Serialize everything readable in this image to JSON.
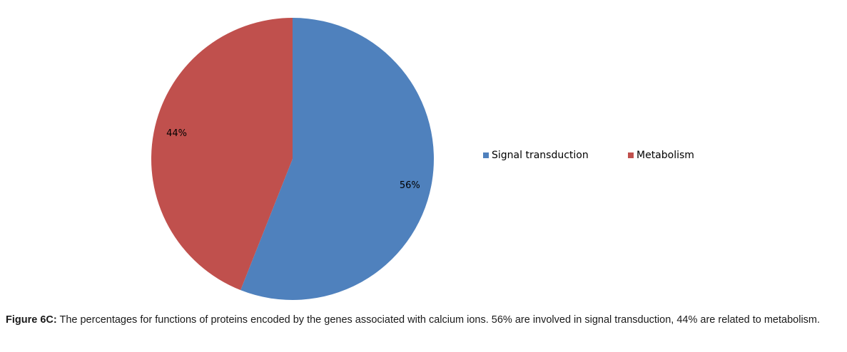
{
  "chart_data": {
    "type": "pie",
    "categories": [
      "Signal transduction",
      "Metabolism"
    ],
    "values": [
      56,
      44
    ],
    "value_labels": [
      "56%",
      "44%"
    ],
    "colors": [
      "#4f81bd",
      "#c0504d"
    ],
    "start_angle": "12 o'clock",
    "direction": "clockwise",
    "legend_position": "right",
    "title": "",
    "xlabel": "",
    "ylabel": ""
  },
  "caption": {
    "label": "Figure 6C:",
    "text": " The percentages for functions of proteins encoded by the genes associated with calcium ions. 56% are involved in signal transduction, 44% are related to metabolism."
  }
}
